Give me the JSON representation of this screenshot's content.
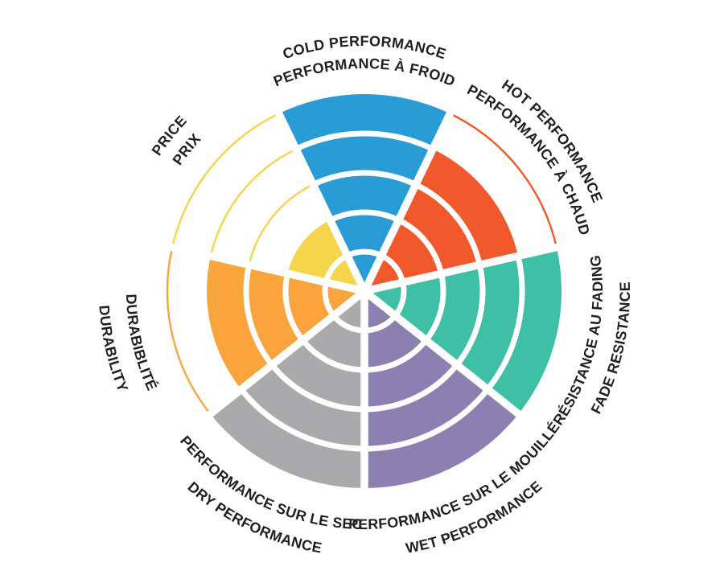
{
  "chart_data": {
    "type": "polar-area",
    "title": "",
    "description": "Tire performance rating wheel: 7 pie sectors each filled to a level out of 5 concentric rings; unfilled ring levels are drawn as thin colored outline arcs; bilingual curved labels around the rim",
    "levels": 5,
    "background": "#FFFFFF",
    "text_color": "#231F20",
    "separator_color": "#FFFFFF",
    "categories": [
      {
        "id": "cold-performance",
        "line1": "COLD PERFORMANCE",
        "line2": "PERFORMANCE À FROID",
        "value": 5,
        "color": "#2A9CD5",
        "flipped": false
      },
      {
        "id": "hot-performance",
        "line1": "HOT PERFORMANCE",
        "line2": "PERFORMANCE À CHAUD",
        "value": 4,
        "color": "#F1582B",
        "flipped": false
      },
      {
        "id": "fade-resistance",
        "line1": "RÉSISTANCE AU FADING",
        "line2": "FADE RESISTANCE",
        "value": 5,
        "color": "#3FBFA5",
        "flipped": true
      },
      {
        "id": "wet-performance",
        "line1": "PERFORMANCE SUR LE MOUILLÉ",
        "line2": "WET PERFORMANCE",
        "value": 5,
        "color": "#8B80AF",
        "flipped": true
      },
      {
        "id": "dry-performance",
        "line1": "PERFORMANCE SUR LE SEC",
        "line2": "DRY PERFORMANCE",
        "value": 5,
        "color": "#AAA9AB",
        "flipped": true
      },
      {
        "id": "durability",
        "line1": "DURABIBLITÉ",
        "line2": "DURABILITY",
        "value": 4,
        "color": "#F9A43C",
        "flipped": true
      },
      {
        "id": "price",
        "line1": "PRICE",
        "line2": "PRIX",
        "value": 2,
        "color": "#F5D54C",
        "flipped": false
      }
    ]
  }
}
